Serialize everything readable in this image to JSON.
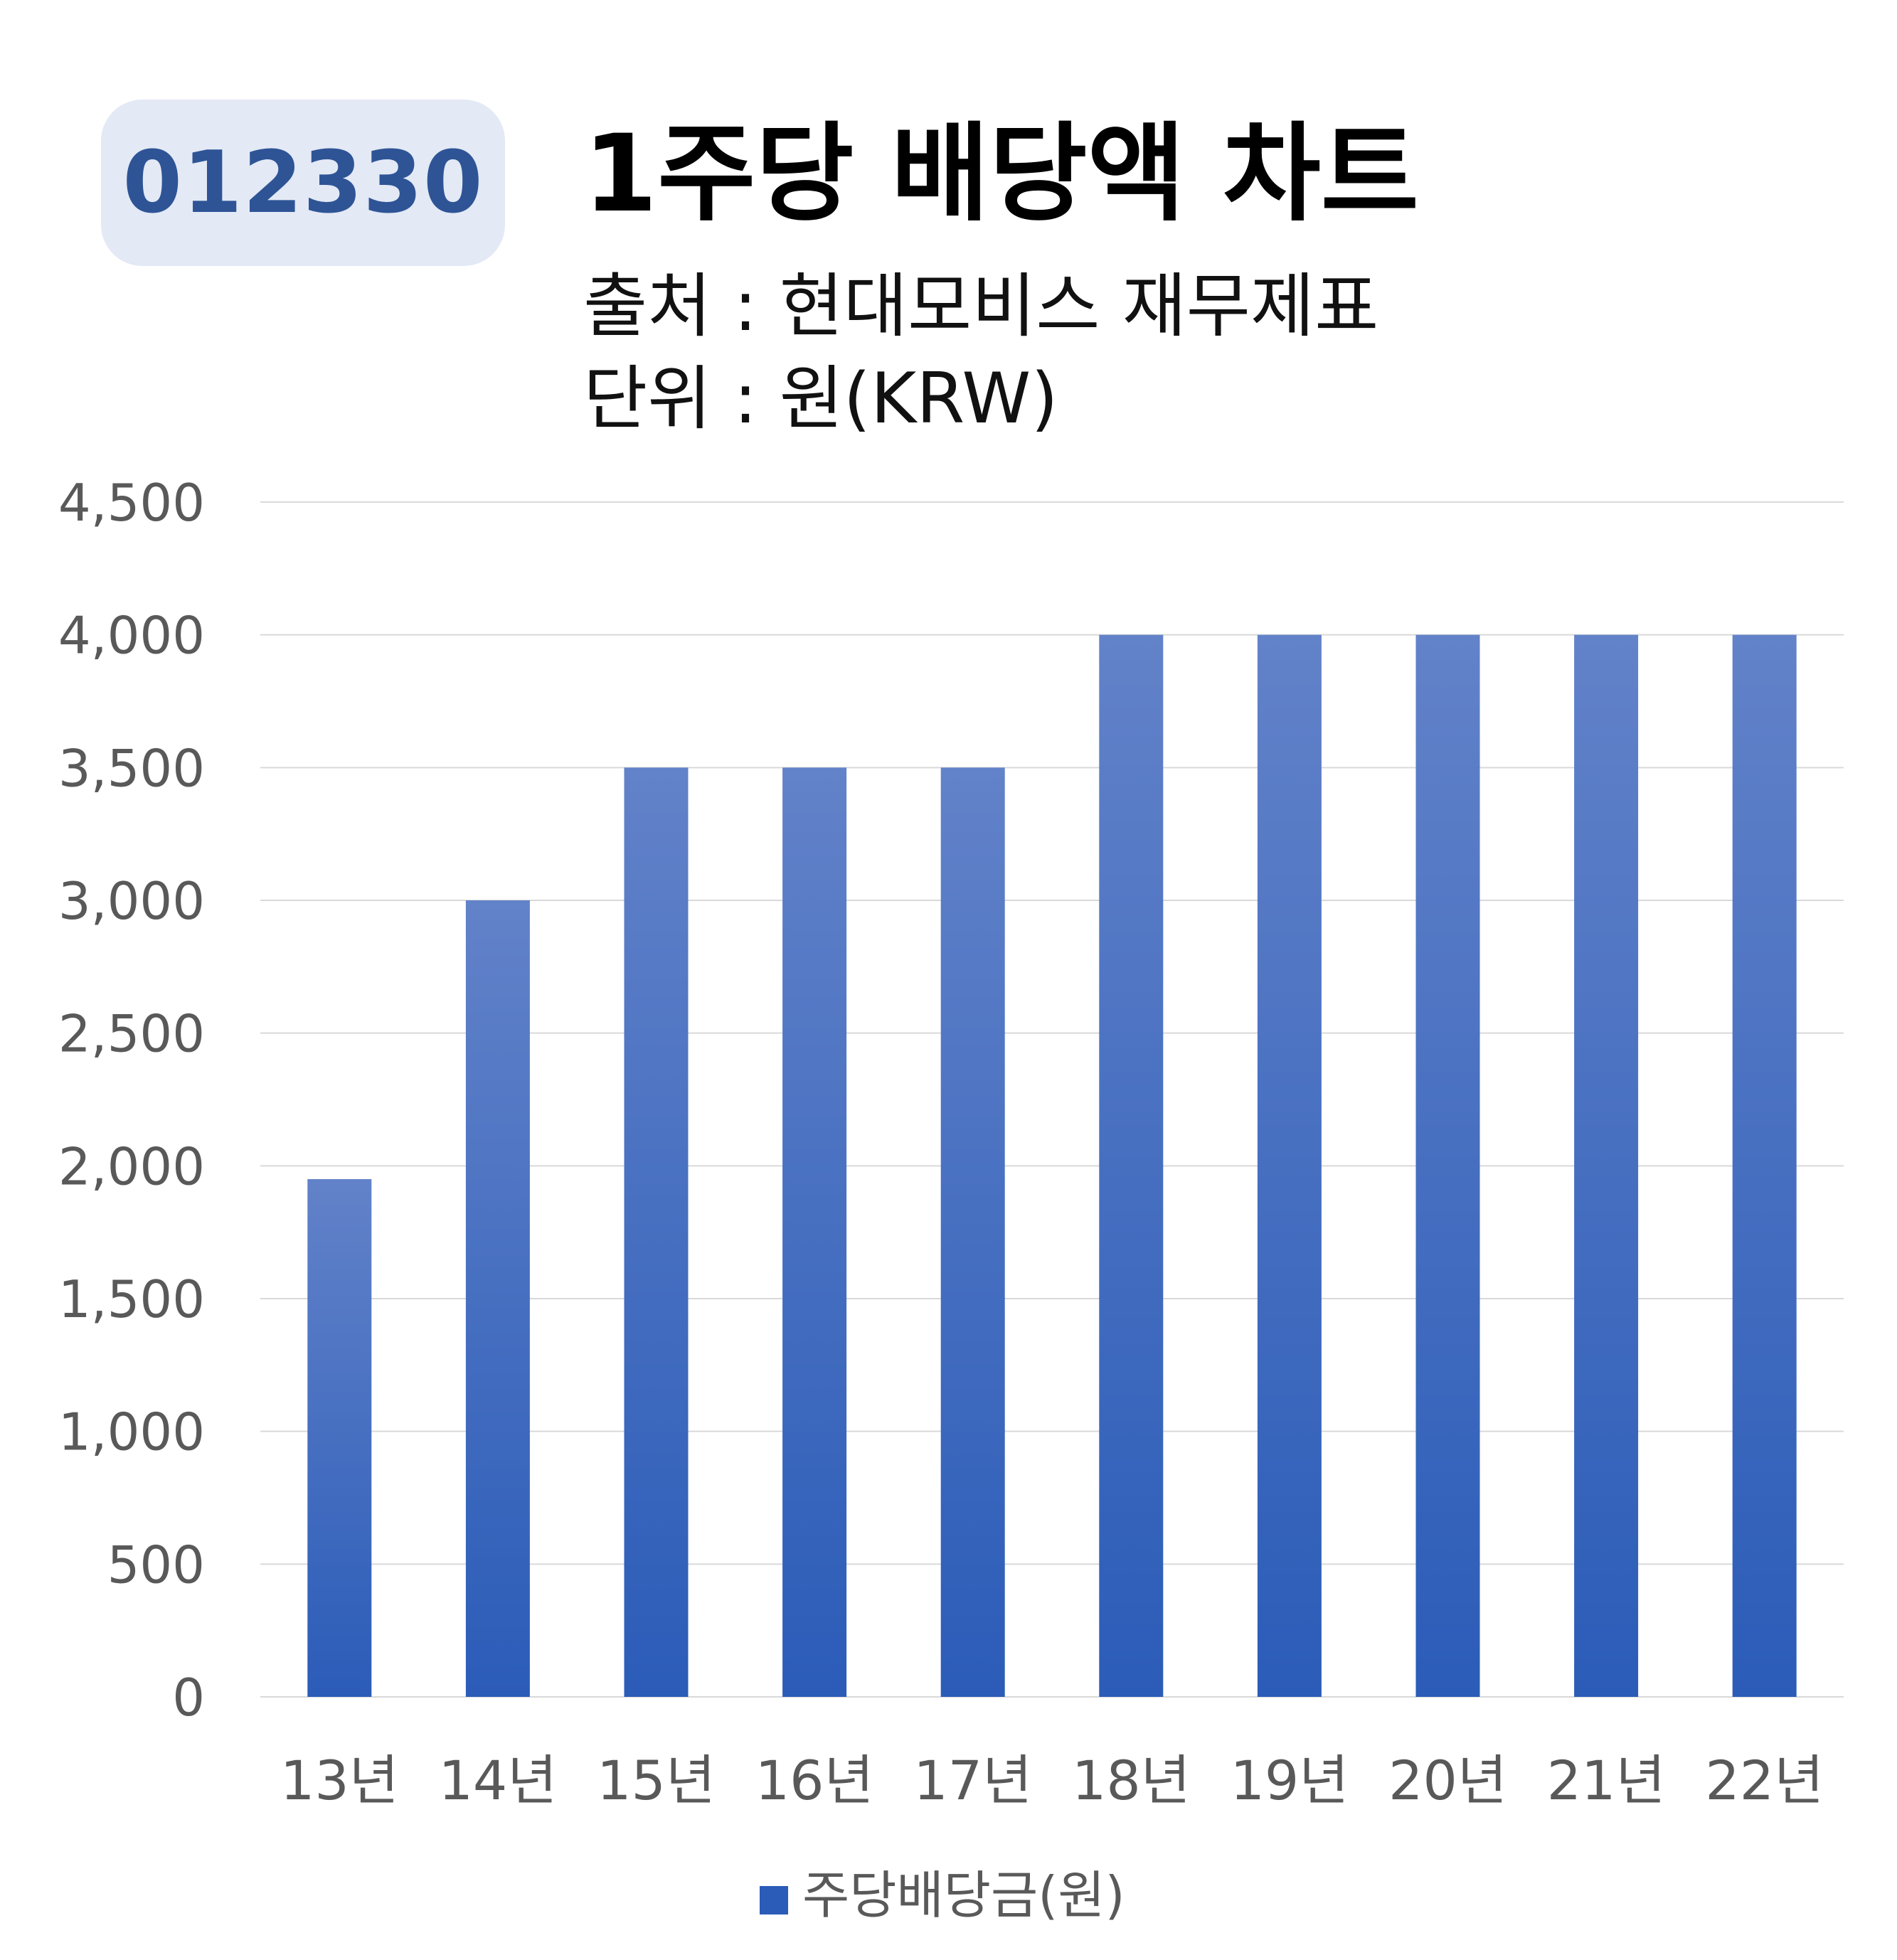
{
  "header": {
    "code": "012330",
    "title": "1주당 배당액 차트",
    "source": "출처 : 현대모비스 재무제표",
    "unit": "단위 : 원(KRW)"
  },
  "colors": {
    "bar_top": "#6282c9",
    "bar_bottom": "#2b5cb8",
    "grid": "#d9d9d9",
    "tick_text": "#595959",
    "badge_bg": "#e3e9f5",
    "badge_text": "#2e5496"
  },
  "chart_data": {
    "type": "bar",
    "categories": [
      "13년",
      "14년",
      "15년",
      "16년",
      "17년",
      "18년",
      "19년",
      "20년",
      "21년",
      "22년"
    ],
    "series": [
      {
        "name": "주당배당금(원)",
        "values": [
          1950,
          3000,
          3500,
          3500,
          3500,
          4000,
          4000,
          4000,
          4000,
          4000
        ]
      }
    ],
    "ylim": [
      0,
      4500
    ],
    "yticks": [
      0,
      500,
      1000,
      1500,
      2000,
      2500,
      3000,
      3500,
      4000,
      4500
    ],
    "ytick_labels": [
      "0",
      "500",
      "1,000",
      "1,500",
      "2,000",
      "2,500",
      "3,000",
      "3,500",
      "4,000",
      "4,500"
    ],
    "grid": true,
    "legend_position": "bottom"
  }
}
